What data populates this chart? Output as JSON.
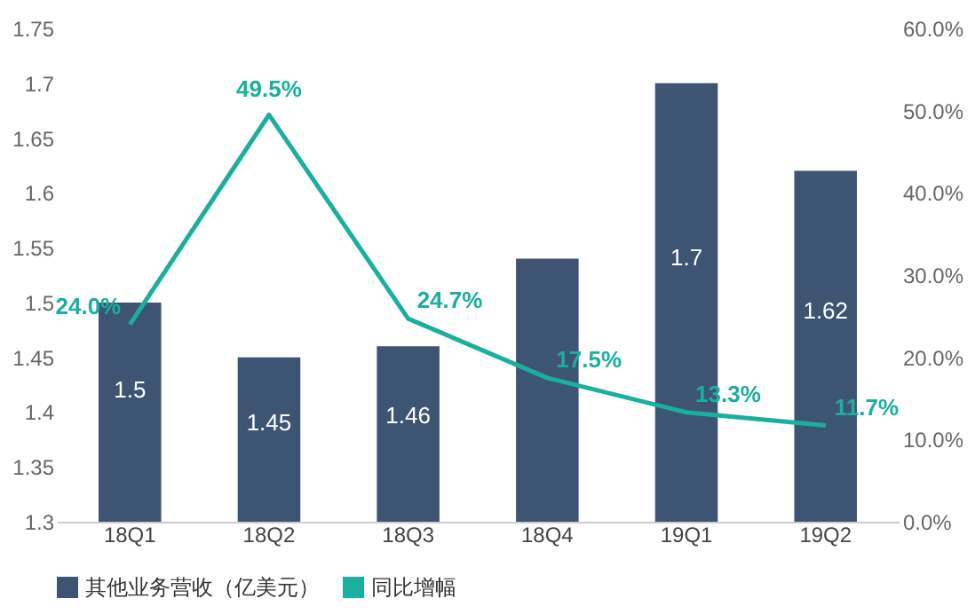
{
  "chart_data": {
    "type": "bar",
    "categories": [
      "18Q1",
      "18Q2",
      "18Q3",
      "18Q4",
      "19Q1",
      "19Q2"
    ],
    "series": [
      {
        "name": "其他业务营收（亿美元）",
        "color": "#3d5573",
        "values": [
          1.5,
          1.45,
          1.46,
          1.54,
          1.7,
          1.62
        ],
        "value_labels": [
          "1.5",
          "1.45",
          "1.46",
          null,
          "1.7",
          "1.62"
        ]
      },
      {
        "name": "同比增幅",
        "type": "line",
        "axis": "y2",
        "color": "#1aaf9f",
        "values": [
          24.0,
          49.5,
          24.7,
          17.5,
          13.3,
          11.7
        ],
        "value_labels": [
          "24.0%",
          "49.5%",
          "24.7%",
          "17.5%",
          "13.3%",
          "11.7%"
        ]
      }
    ],
    "ylim": [
      1.3,
      1.75
    ],
    "yticks": [
      1.3,
      1.35,
      1.4,
      1.45,
      1.5,
      1.55,
      1.6,
      1.65,
      1.7,
      1.75
    ],
    "y2lim": [
      0,
      60
    ],
    "y2ticks": [
      {
        "value": 0,
        "label": "0.0%"
      },
      {
        "value": 10,
        "label": "10.0%"
      },
      {
        "value": 20,
        "label": "20.0%"
      },
      {
        "value": 30,
        "label": "30.0%"
      },
      {
        "value": 40,
        "label": "40.0%"
      },
      {
        "value": 50,
        "label": "50.0%"
      },
      {
        "value": 60,
        "label": "60.0%"
      }
    ],
    "grid": false,
    "legend": "bottom",
    "marker": "none",
    "line_style": "solid"
  }
}
